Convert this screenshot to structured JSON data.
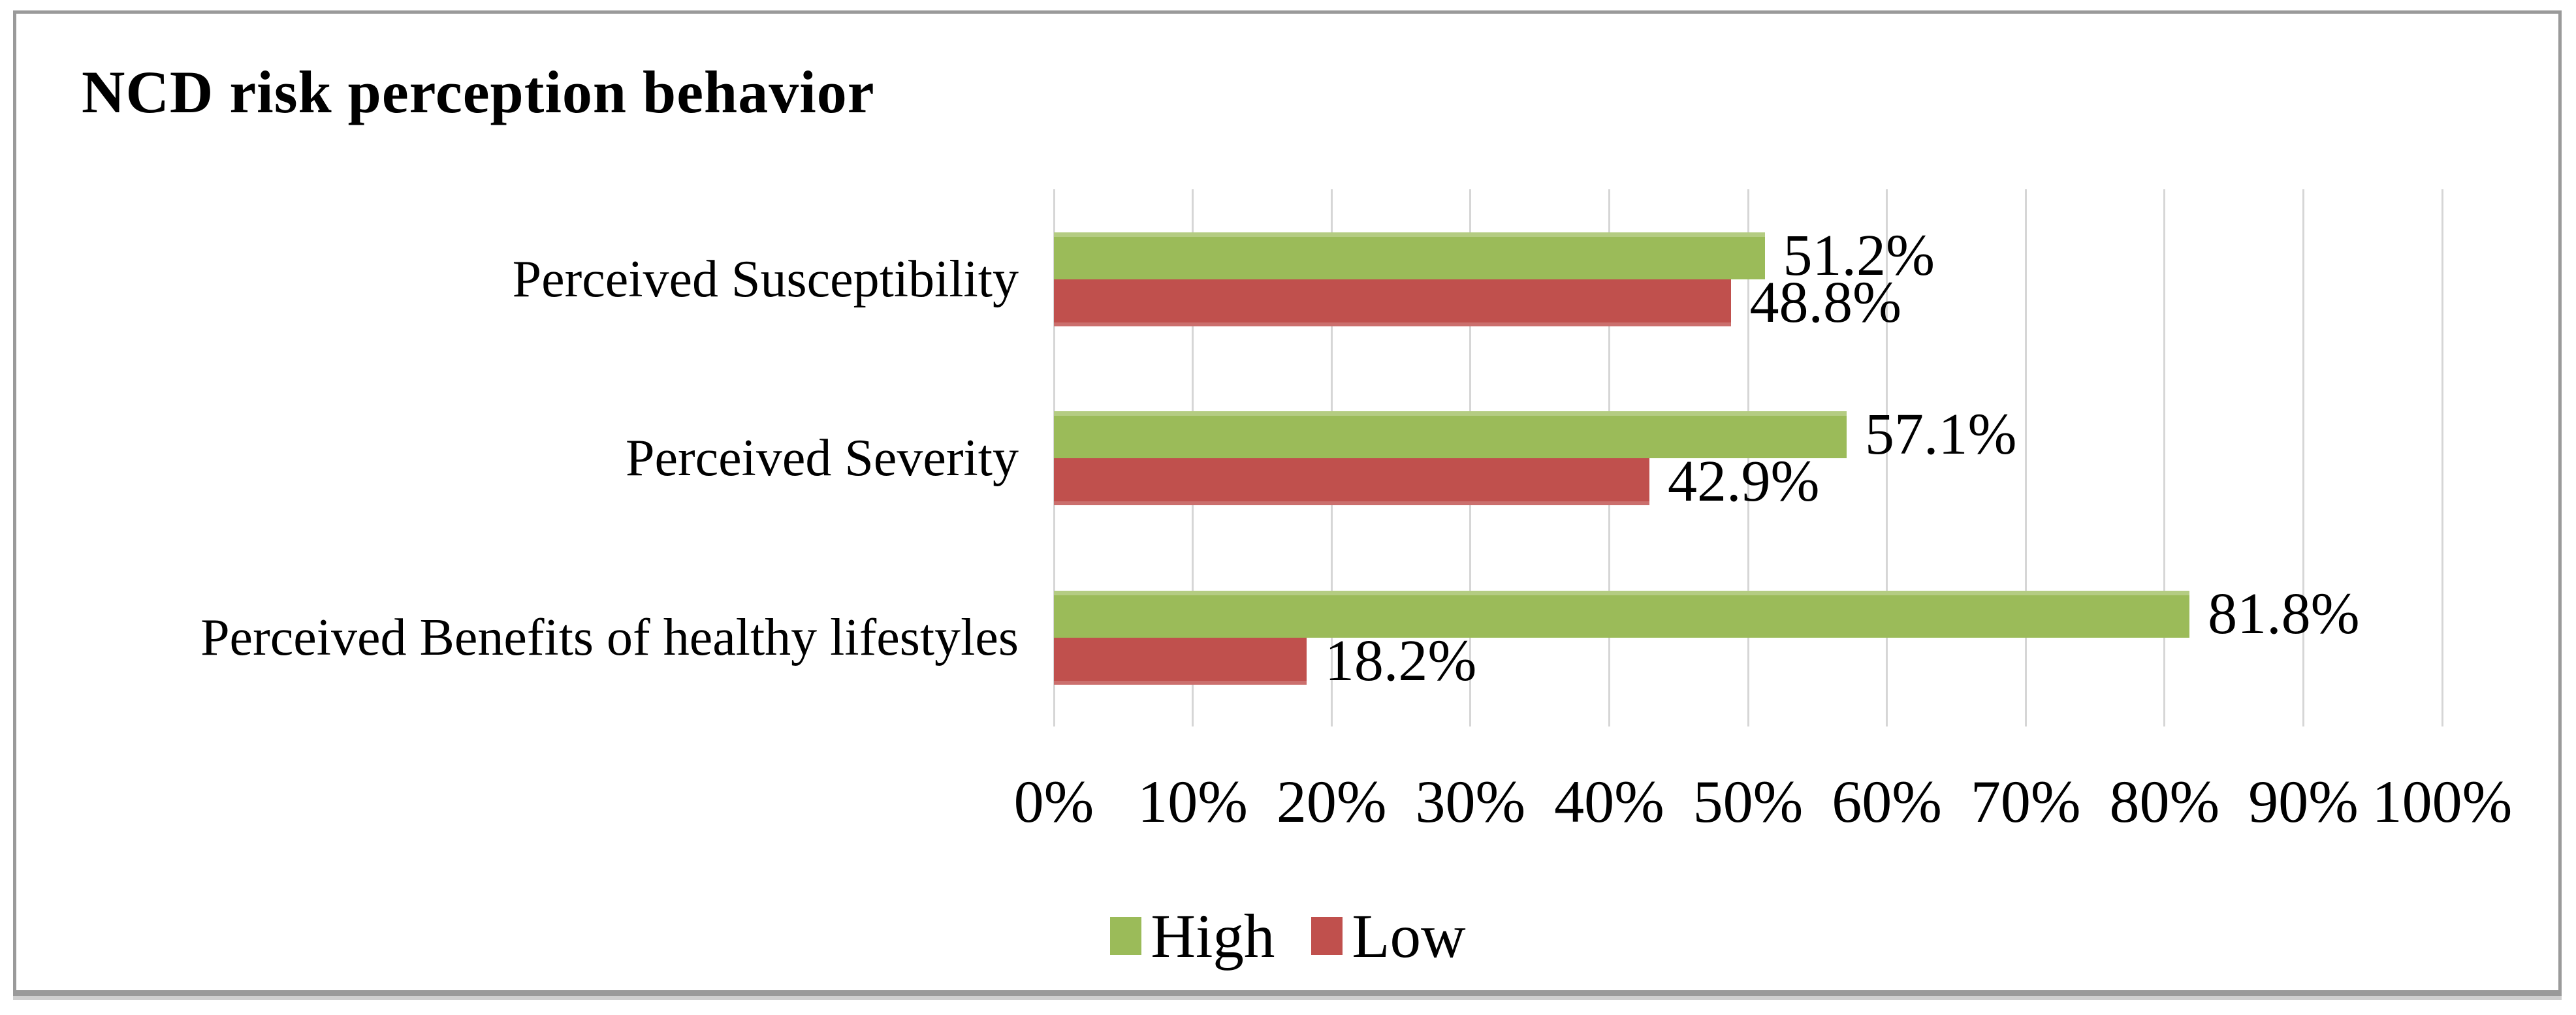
{
  "chart_data": {
    "type": "bar",
    "orientation": "horizontal",
    "title": "NCD risk perception behavior",
    "categories": [
      "Perceived Susceptibility",
      "Perceived Severity",
      "Perceived Benefits of healthy lifestyles"
    ],
    "series": [
      {
        "name": "High",
        "color": "#9BBB59",
        "values": [
          51.2,
          57.1,
          81.8
        ],
        "data_labels": [
          "51.2%",
          "57.1%",
          "81.8%"
        ]
      },
      {
        "name": "Low",
        "color": "#C0504D",
        "values": [
          48.8,
          42.9,
          18.2
        ],
        "data_labels": [
          "48.8%",
          "42.9%",
          "18.2%"
        ]
      }
    ],
    "x_axis": {
      "min": 0,
      "max": 100,
      "tick_labels": [
        "0%",
        "10%",
        "20%",
        "30%",
        "40%",
        "50%",
        "60%",
        "70%",
        "80%",
        "90%",
        "100%"
      ],
      "grid": true
    },
    "legend": {
      "position": "bottom",
      "entries": [
        "High",
        "Low"
      ]
    }
  },
  "colors": {
    "series_high": "#9BBB59",
    "series_low": "#C0504D",
    "gridline": "#D6D6D6",
    "frame_border": "#9A9A9A",
    "text": "#000000",
    "background": "#FFFFFF"
  }
}
